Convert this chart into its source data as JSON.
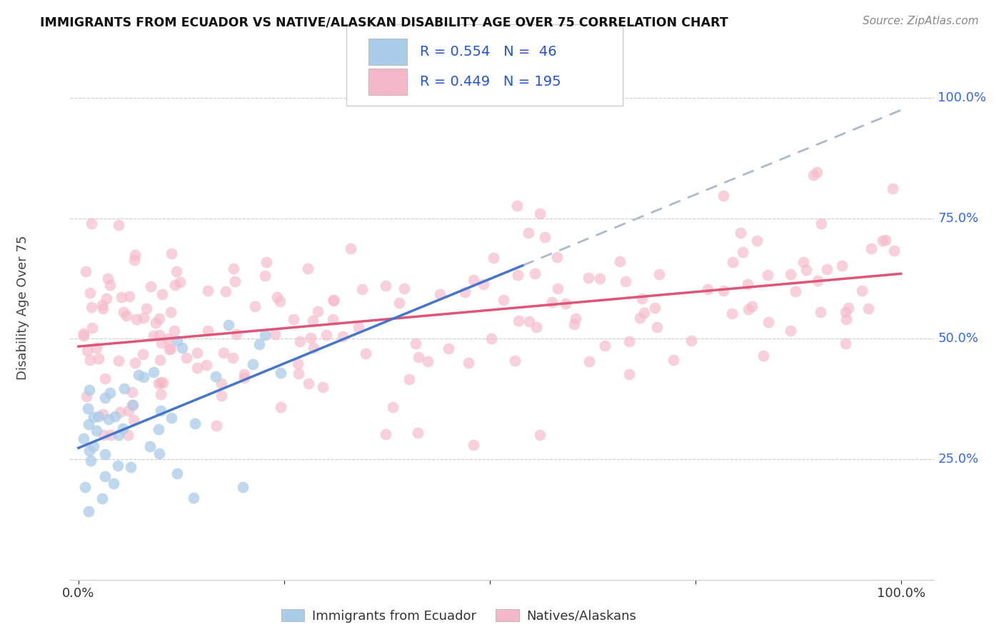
{
  "title": "IMMIGRANTS FROM ECUADOR VS NATIVE/ALASKAN DISABILITY AGE OVER 75 CORRELATION CHART",
  "source": "Source: ZipAtlas.com",
  "ylabel": "Disability Age Over 75",
  "legend_label1": "Immigrants from Ecuador",
  "legend_label2": "Natives/Alaskans",
  "R1": 0.554,
  "N1": 46,
  "R2": 0.449,
  "N2": 195,
  "color_blue": "#aacce8",
  "color_pink": "#f5b8c8",
  "color_line_blue": "#4477cc",
  "color_line_pink": "#dd5577",
  "color_line_dashed": "#aabbcc",
  "ytick_labels": [
    "25.0%",
    "50.0%",
    "75.0%",
    "100.0%"
  ],
  "ytick_values": [
    0.25,
    0.5,
    0.75,
    1.0
  ],
  "blue_seed": 42,
  "pink_seed": 99
}
